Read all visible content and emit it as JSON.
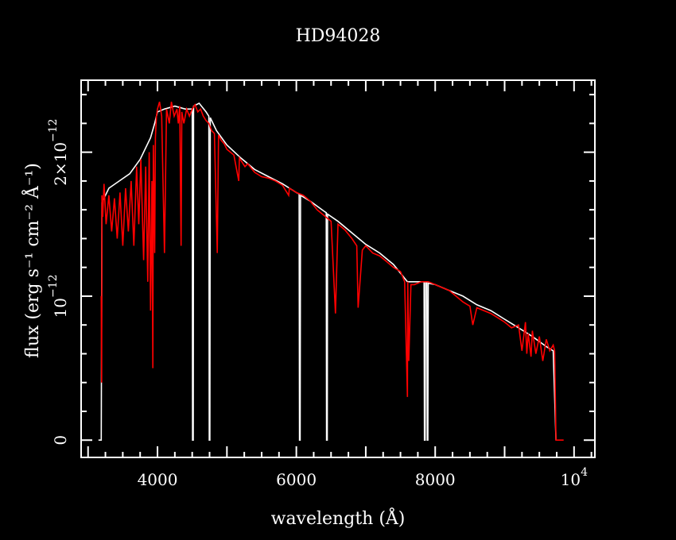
{
  "chart_data": {
    "type": "line",
    "title": "HD94028",
    "xlabel": "wavelength (Å)",
    "ylabel": "flux (erg s⁻¹ cm⁻² Å⁻¹)",
    "xlim": [
      2900,
      10300
    ],
    "ylim": [
      -1.2e-13,
      2.5e-12
    ],
    "x_ticks": [
      {
        "value": 4000,
        "label": "4000"
      },
      {
        "value": 6000,
        "label": "6000"
      },
      {
        "value": 8000,
        "label": "8000"
      },
      {
        "value": 10000,
        "label": "10",
        "exponent": "4"
      }
    ],
    "y_ticks": [
      {
        "value": 0,
        "label": "0"
      },
      {
        "value": 1e-12,
        "label": "10",
        "exponent": "−12"
      },
      {
        "value": 2e-12,
        "label": "2×10",
        "exponent": "−12"
      }
    ],
    "grid": false,
    "colors": {
      "background": "#000000",
      "axes": "#ffffff",
      "series_white": "#ffffff",
      "series_red": "#ff0000"
    },
    "series": [
      {
        "color": "#ffffff",
        "x": [
          3150,
          3190,
          3200,
          3230,
          3300,
          3450,
          3600,
          3750,
          3900,
          3960,
          4000,
          4100,
          4250,
          4400,
          4500,
          4505,
          4515,
          4520,
          4600,
          4700,
          4740,
          4745,
          4755,
          4760,
          4850,
          5000,
          5200,
          5400,
          5600,
          5800,
          6000,
          6040,
          6045,
          6055,
          6060,
          6200,
          6400,
          6430,
          6435,
          6445,
          6450,
          6600,
          6800,
          7000,
          7200,
          7400,
          7600,
          7650,
          7840,
          7845,
          7855,
          7860,
          7880,
          7885,
          7895,
          7900,
          8000,
          8200,
          8400,
          8600,
          8800,
          9000,
          9200,
          9400,
          9600,
          9700,
          9740
        ],
        "y": [
          0,
          0,
          1.65e-12,
          1.68e-12,
          1.75e-12,
          1.8e-12,
          1.85e-12,
          1.95e-12,
          2.1e-12,
          2.2e-12,
          2.28e-12,
          2.3e-12,
          2.32e-12,
          2.3e-12,
          2.3e-12,
          0,
          0,
          2.32e-12,
          2.34e-12,
          2.28e-12,
          2.25e-12,
          0,
          0,
          2.24e-12,
          2.15e-12,
          2.05e-12,
          1.96e-12,
          1.88e-12,
          1.83e-12,
          1.78e-12,
          1.72e-12,
          1.71e-12,
          0,
          0,
          1.7e-12,
          1.66e-12,
          1.59e-12,
          1.58e-12,
          0,
          0,
          1.57e-12,
          1.52e-12,
          1.44e-12,
          1.36e-12,
          1.3e-12,
          1.22e-12,
          1.1e-12,
          1.1e-12,
          1.1e-12,
          0,
          0,
          1.1e-12,
          1.1e-12,
          0,
          0,
          1.09e-12,
          1.08e-12,
          1.04e-12,
          1e-12,
          9.4e-13,
          9e-13,
          8.4e-13,
          7.8e-13,
          7.2e-13,
          6.5e-13,
          6.2e-13,
          0
        ]
      },
      {
        "color": "#ff0000",
        "x": [
          3190,
          3195,
          3200,
          3210,
          3230,
          3260,
          3300,
          3340,
          3380,
          3420,
          3460,
          3500,
          3540,
          3580,
          3620,
          3660,
          3700,
          3730,
          3760,
          3800,
          3830,
          3860,
          3880,
          3900,
          3920,
          3933,
          3940,
          3960,
          3970,
          3985,
          4000,
          4030,
          4060,
          4101,
          4130,
          4170,
          4200,
          4240,
          4280,
          4300,
          4320,
          4340,
          4350,
          4380,
          4420,
          4460,
          4500,
          4540,
          4580,
          4620,
          4660,
          4700,
          4740,
          4780,
          4820,
          4861,
          4880,
          4920,
          4960,
          5000,
          5100,
          5170,
          5180,
          5260,
          5300,
          5400,
          5500,
          5600,
          5700,
          5800,
          5890,
          5900,
          6000,
          6100,
          6200,
          6300,
          6400,
          6500,
          6563,
          6600,
          6700,
          6800,
          6870,
          6890,
          6950,
          7000,
          7100,
          7200,
          7300,
          7400,
          7500,
          7560,
          7600,
          7605,
          7620,
          7650,
          7700,
          7800,
          7900,
          8000,
          8100,
          8200,
          8300,
          8400,
          8500,
          8542,
          8600,
          8700,
          8800,
          8900,
          9000,
          9100,
          9200,
          9250,
          9300,
          9320,
          9340,
          9380,
          9400,
          9450,
          9500,
          9550,
          9600,
          9650,
          9700,
          9720,
          9740,
          9745,
          9850
        ],
        "y": [
          1e-12,
          4e-13,
          1.7e-12,
          1.55e-12,
          1.78e-12,
          1.5e-12,
          1.7e-12,
          1.45e-12,
          1.68e-12,
          1.4e-12,
          1.72e-12,
          1.35e-12,
          1.75e-12,
          1.45e-12,
          1.8e-12,
          1.35e-12,
          1.9e-12,
          1.5e-12,
          1.95e-12,
          1.25e-12,
          1.9e-12,
          1.1e-12,
          2e-12,
          9e-13,
          1.8e-12,
          5e-13,
          2.05e-12,
          1.3e-12,
          2.1e-12,
          2.25e-12,
          2.3e-12,
          2.35e-12,
          2.25e-12,
          1.3e-12,
          2.3e-12,
          2.2e-12,
          2.35e-12,
          2.25e-12,
          2.3e-12,
          2.2e-12,
          2.32e-12,
          1.35e-12,
          2.28e-12,
          2.2e-12,
          2.3e-12,
          2.25e-12,
          2.3e-12,
          2.33e-12,
          2.28e-12,
          2.3e-12,
          2.25e-12,
          2.22e-12,
          2.2e-12,
          2.15e-12,
          2.13e-12,
          1.3e-12,
          2.12e-12,
          2.08e-12,
          2.06e-12,
          2.02e-12,
          1.98e-12,
          1.8e-12,
          1.96e-12,
          1.9e-12,
          1.92e-12,
          1.86e-12,
          1.83e-12,
          1.82e-12,
          1.8e-12,
          1.77e-12,
          1.7e-12,
          1.75e-12,
          1.72e-12,
          1.7e-12,
          1.66e-12,
          1.6e-12,
          1.56e-12,
          1.52e-12,
          8.8e-13,
          1.5e-12,
          1.46e-12,
          1.4e-12,
          1.35e-12,
          9.2e-13,
          1.32e-12,
          1.35e-12,
          1.3e-12,
          1.28e-12,
          1.24e-12,
          1.2e-12,
          1.17e-12,
          1.1e-12,
          3e-13,
          1.1e-12,
          5.5e-13,
          1.08e-12,
          1.08e-12,
          1.1e-12,
          1.1e-12,
          1.08e-12,
          1.06e-12,
          1.04e-12,
          1e-12,
          9.6e-13,
          9.3e-13,
          8e-13,
          9.2e-13,
          9e-13,
          8.8e-13,
          8.5e-13,
          8.2e-13,
          7.8e-13,
          8e-13,
          6.2e-13,
          8.2e-13,
          6e-13,
          7.4e-13,
          5.8e-13,
          7.6e-13,
          6e-13,
          7.2e-13,
          5.5e-13,
          7e-13,
          6.2e-13,
          6.6e-13,
          6.2e-13,
          0,
          0,
          0
        ]
      }
    ]
  }
}
